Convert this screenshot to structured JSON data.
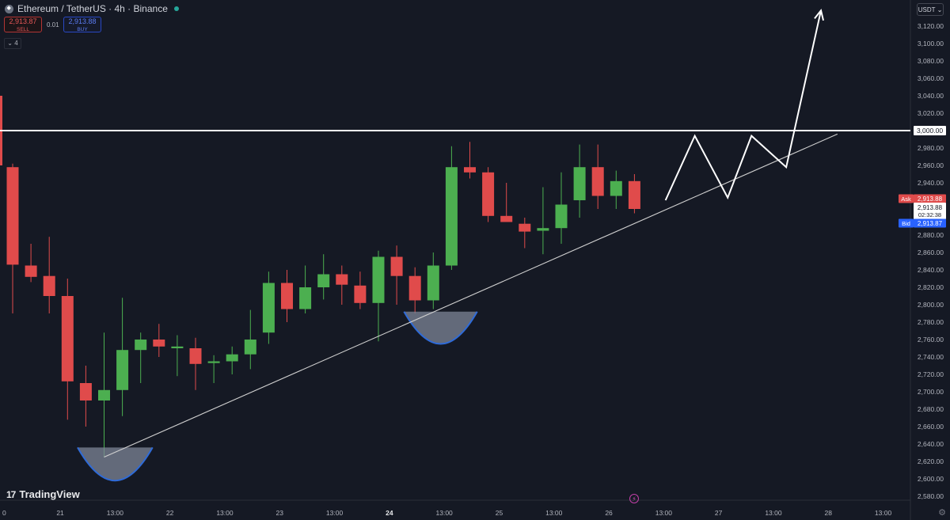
{
  "header": {
    "title": "Ethereum / TetherUS · 4h · Binance",
    "sell_price": "2,913.87",
    "sell_label": "SELL",
    "spread": "0.01",
    "buy_price": "2,913.88",
    "buy_label": "BUY",
    "indicators_count": "4",
    "currency": "USDT"
  },
  "branding": {
    "logo": "TradingView"
  },
  "colors": {
    "background": "#151924",
    "bull": "#4caf50",
    "bear": "#e04b4b",
    "horizontal_line": "#ffffff",
    "trendline": "#d0d0d0",
    "projection": "#ffffff",
    "cup_fill": "#7d8597",
    "cup_edge": "#2f6bd8",
    "ask_tag": "#e04b4b",
    "bid_tag": "#2962ff"
  },
  "chart_data": {
    "type": "candlestick",
    "title": "Ethereum / TetherUS · 4h · Binance",
    "ylim": [
      2570,
      3150
    ],
    "y_ticks": [
      2580,
      2600,
      2620,
      2640,
      2660,
      2680,
      2700,
      2720,
      2740,
      2760,
      2780,
      2800,
      2820,
      2840,
      2860,
      2880,
      2900,
      2920,
      2940,
      2960,
      2980,
      3000,
      3020,
      3040,
      3060,
      3080,
      3100,
      3120
    ],
    "x_ticks": [
      {
        "i": 0,
        "label": "0"
      },
      {
        "i": 2.6,
        "label": "21"
      },
      {
        "i": 5.6,
        "label": "13:00"
      },
      {
        "i": 8.6,
        "label": "22"
      },
      {
        "i": 11.6,
        "label": "13:00"
      },
      {
        "i": 14.6,
        "label": "23"
      },
      {
        "i": 17.6,
        "label": "13:00"
      },
      {
        "i": 20.6,
        "label": "24"
      },
      {
        "i": 23.6,
        "label": "13:00"
      },
      {
        "i": 26.6,
        "label": "25"
      },
      {
        "i": 29.6,
        "label": "13:00"
      },
      {
        "i": 32.6,
        "label": "26"
      },
      {
        "i": 35.6,
        "label": "13:00"
      },
      {
        "i": 38.6,
        "label": "27"
      },
      {
        "i": 41.6,
        "label": "13:00"
      },
      {
        "i": 44.6,
        "label": "28"
      },
      {
        "i": 47.6,
        "label": "13:00"
      }
    ],
    "candles": [
      {
        "i": 0,
        "o": 2958,
        "h": 2962,
        "l": 2790,
        "c": 2846
      },
      {
        "i": 1,
        "o": 2845,
        "h": 2870,
        "l": 2826,
        "c": 2832
      },
      {
        "i": 2,
        "o": 2833,
        "h": 2878,
        "l": 2790,
        "c": 2810
      },
      {
        "i": 3,
        "o": 2810,
        "h": 2830,
        "l": 2668,
        "c": 2712
      },
      {
        "i": 4,
        "o": 2710,
        "h": 2730,
        "l": 2660,
        "c": 2690
      },
      {
        "i": 5,
        "o": 2690,
        "h": 2768,
        "l": 2625,
        "c": 2702
      },
      {
        "i": 6,
        "o": 2702,
        "h": 2808,
        "l": 2672,
        "c": 2748
      },
      {
        "i": 7,
        "o": 2748,
        "h": 2768,
        "l": 2710,
        "c": 2760
      },
      {
        "i": 8,
        "o": 2760,
        "h": 2778,
        "l": 2740,
        "c": 2752
      },
      {
        "i": 9,
        "o": 2750,
        "h": 2765,
        "l": 2718,
        "c": 2752
      },
      {
        "i": 10,
        "o": 2750,
        "h": 2762,
        "l": 2702,
        "c": 2732
      },
      {
        "i": 11,
        "o": 2733,
        "h": 2742,
        "l": 2710,
        "c": 2735
      },
      {
        "i": 12,
        "o": 2735,
        "h": 2752,
        "l": 2720,
        "c": 2743
      },
      {
        "i": 13,
        "o": 2743,
        "h": 2794,
        "l": 2726,
        "c": 2760
      },
      {
        "i": 14,
        "o": 2768,
        "h": 2838,
        "l": 2755,
        "c": 2825
      },
      {
        "i": 15,
        "o": 2825,
        "h": 2840,
        "l": 2780,
        "c": 2795
      },
      {
        "i": 16,
        "o": 2795,
        "h": 2845,
        "l": 2790,
        "c": 2820
      },
      {
        "i": 17,
        "o": 2820,
        "h": 2858,
        "l": 2806,
        "c": 2835
      },
      {
        "i": 18,
        "o": 2835,
        "h": 2845,
        "l": 2800,
        "c": 2823
      },
      {
        "i": 19,
        "o": 2822,
        "h": 2838,
        "l": 2795,
        "c": 2802
      },
      {
        "i": 20,
        "o": 2802,
        "h": 2862,
        "l": 2758,
        "c": 2855
      },
      {
        "i": 21,
        "o": 2855,
        "h": 2868,
        "l": 2800,
        "c": 2833
      },
      {
        "i": 22,
        "o": 2833,
        "h": 2843,
        "l": 2790,
        "c": 2805
      },
      {
        "i": 23,
        "o": 2805,
        "h": 2860,
        "l": 2795,
        "c": 2845
      },
      {
        "i": 24,
        "o": 2845,
        "h": 2982,
        "l": 2840,
        "c": 2958
      },
      {
        "i": 25,
        "o": 2958,
        "h": 2987,
        "l": 2945,
        "c": 2952
      },
      {
        "i": 26,
        "o": 2952,
        "h": 2958,
        "l": 2895,
        "c": 2902
      },
      {
        "i": 27,
        "o": 2902,
        "h": 2940,
        "l": 2895,
        "c": 2895
      },
      {
        "i": 28,
        "o": 2893,
        "h": 2900,
        "l": 2865,
        "c": 2884
      },
      {
        "i": 29,
        "o": 2885,
        "h": 2935,
        "l": 2858,
        "c": 2888
      },
      {
        "i": 30,
        "o": 2888,
        "h": 2952,
        "l": 2870,
        "c": 2915
      },
      {
        "i": 31,
        "o": 2920,
        "h": 2984,
        "l": 2900,
        "c": 2958
      },
      {
        "i": 32,
        "o": 2958,
        "h": 2984,
        "l": 2910,
        "c": 2925
      },
      {
        "i": 33,
        "o": 2925,
        "h": 2954,
        "l": 2910,
        "c": 2942
      },
      {
        "i": 34,
        "o": 2942,
        "h": 2950,
        "l": 2905,
        "c": 2910
      }
    ],
    "horizontal_level": 3000,
    "trendline": [
      {
        "i": 5,
        "y": 2625
      },
      {
        "i": 45.1,
        "y": 2996
      }
    ],
    "projection_path": [
      {
        "i": 35.7,
        "y": 2920
      },
      {
        "i": 37.3,
        "y": 2994
      },
      {
        "i": 39.1,
        "y": 2923
      },
      {
        "i": 40.4,
        "y": 2994
      },
      {
        "i": 42.3,
        "y": 2958
      },
      {
        "i": 44.2,
        "y": 3138
      }
    ],
    "cup_patterns": [
      {
        "center_i": 5.6,
        "top_y": 2636,
        "bottom_y": 2598,
        "half_width_i": 2.05
      },
      {
        "center_i": 23.4,
        "top_y": 2792,
        "bottom_y": 2755,
        "half_width_i": 2.0
      }
    ],
    "level_label": "3,000.00",
    "ask": {
      "label": "Ask",
      "price": "2,913.88"
    },
    "last": {
      "price": "2,913.88",
      "countdown": "02:32:38"
    },
    "bid": {
      "label": "Bid",
      "price": "2,913.87"
    }
  }
}
